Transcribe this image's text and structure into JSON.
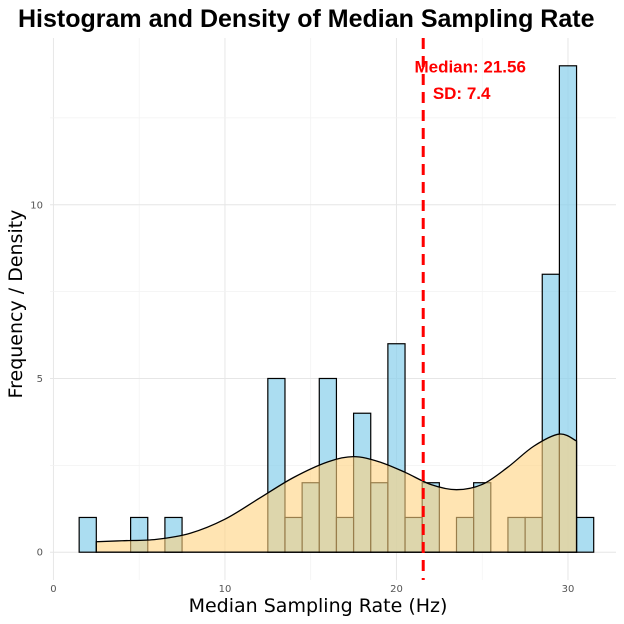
{
  "chart_data": {
    "type": "histogram",
    "title": "Histogram and Density of Median Sampling Rate",
    "xlabel": "Median Sampling Rate (Hz)",
    "ylabel": "Frequency / Density",
    "xlim": [
      -0.2,
      32.8
    ],
    "ylim": [
      -0.8,
      14.8
    ],
    "x_ticks": [
      0,
      10,
      20,
      30
    ],
    "y_ticks": [
      0,
      5,
      10
    ],
    "grid": true,
    "bin_width": 1,
    "histogram": {
      "fill": "#87ceeb",
      "fill_opacity": 0.7,
      "stroke": "#000000",
      "bins": [
        {
          "x0": 1.5,
          "x1": 2.5,
          "count": 1
        },
        {
          "x0": 4.5,
          "x1": 5.5,
          "count": 1
        },
        {
          "x0": 6.5,
          "x1": 7.5,
          "count": 1
        },
        {
          "x0": 12.5,
          "x1": 13.5,
          "count": 5
        },
        {
          "x0": 13.5,
          "x1": 14.5,
          "count": 1
        },
        {
          "x0": 14.5,
          "x1": 15.5,
          "count": 2
        },
        {
          "x0": 15.5,
          "x1": 16.5,
          "count": 5
        },
        {
          "x0": 16.5,
          "x1": 17.5,
          "count": 1
        },
        {
          "x0": 17.5,
          "x1": 18.5,
          "count": 4
        },
        {
          "x0": 18.5,
          "x1": 19.5,
          "count": 2
        },
        {
          "x0": 19.5,
          "x1": 20.5,
          "count": 6
        },
        {
          "x0": 20.5,
          "x1": 21.5,
          "count": 1
        },
        {
          "x0": 21.5,
          "x1": 22.5,
          "count": 2
        },
        {
          "x0": 23.5,
          "x1": 24.5,
          "count": 1
        },
        {
          "x0": 24.5,
          "x1": 25.5,
          "count": 2
        },
        {
          "x0": 26.5,
          "x1": 27.5,
          "count": 1
        },
        {
          "x0": 27.5,
          "x1": 28.5,
          "count": 1
        },
        {
          "x0": 28.5,
          "x1": 29.5,
          "count": 8
        },
        {
          "x0": 29.5,
          "x1": 30.5,
          "count": 14
        },
        {
          "x0": 30.5,
          "x1": 31.5,
          "count": 1
        }
      ]
    },
    "density": {
      "fill": "#ffd27f",
      "fill_opacity": 0.6,
      "stroke": "#000000",
      "x": [
        2.5,
        4,
        6,
        8,
        10,
        12,
        14,
        16,
        17.5,
        19,
        20.5,
        22,
        23.5,
        25,
        26.5,
        28,
        29.5,
        30.5
      ],
      "y": [
        0.3,
        0.33,
        0.37,
        0.55,
        0.95,
        1.55,
        2.15,
        2.6,
        2.75,
        2.6,
        2.3,
        1.95,
        1.8,
        1.95,
        2.45,
        3.05,
        3.4,
        3.2
      ]
    },
    "median_line": {
      "x": 21.56,
      "color": "#ff0000",
      "style": "dashed"
    },
    "annotations": [
      {
        "text": "Median: 21.56",
        "x": 24.3,
        "y": 13.8
      },
      {
        "text": "SD: 7.4",
        "x": 23.8,
        "y": 13.05
      }
    ]
  }
}
